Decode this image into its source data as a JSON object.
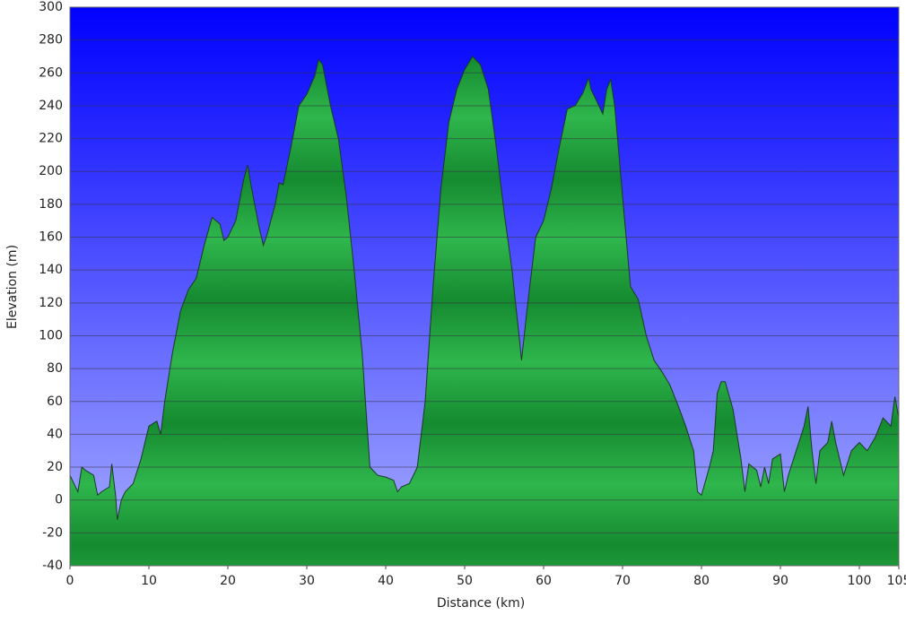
{
  "chart_data": {
    "type": "area",
    "xlabel": "Distance  (km)",
    "ylabel": "Elevation (m)",
    "x": [
      0,
      1,
      1.5,
      2,
      3,
      3.5,
      4,
      5,
      5.3,
      5.8,
      6,
      6.5,
      7,
      8,
      9,
      10,
      11,
      11.5,
      12,
      13,
      14,
      15,
      16,
      17,
      18,
      19,
      19.5,
      20,
      21,
      22,
      22.5,
      23,
      24,
      24.5,
      25,
      26,
      26.5,
      27,
      28,
      29,
      30,
      31,
      31.5,
      32,
      33,
      34,
      35,
      36,
      37,
      38,
      39,
      40,
      41,
      41.5,
      42,
      43,
      44,
      45,
      46,
      47,
      48,
      49,
      50,
      51,
      52,
      53,
      54,
      55,
      56,
      57,
      57.2,
      58,
      59,
      60,
      61,
      62,
      63,
      64,
      65,
      65.7,
      66,
      67,
      67.5,
      68,
      68.5,
      69,
      70,
      71,
      72,
      73,
      74,
      75,
      76,
      77,
      78,
      79,
      79.5,
      80,
      81,
      81.5,
      82,
      82.5,
      83,
      84,
      85,
      85.5,
      86,
      87,
      87.5,
      88,
      88.5,
      89,
      90,
      90.5,
      91,
      92,
      93,
      93.5,
      94,
      94.5,
      95,
      96,
      96.5,
      97,
      98,
      99,
      100,
      101,
      102,
      103,
      104,
      104.5,
      105
    ],
    "values": [
      15,
      5,
      20,
      18,
      15,
      3,
      5,
      8,
      22,
      2,
      -12,
      0,
      5,
      10,
      25,
      45,
      48,
      40,
      60,
      90,
      115,
      128,
      135,
      155,
      172,
      168,
      158,
      160,
      170,
      195,
      204,
      190,
      165,
      155,
      162,
      180,
      193,
      192,
      215,
      240,
      247,
      258,
      268,
      265,
      240,
      220,
      185,
      140,
      90,
      20,
      15,
      14,
      12,
      5,
      8,
      10,
      20,
      60,
      130,
      190,
      230,
      250,
      262,
      270,
      265,
      250,
      215,
      175,
      140,
      95,
      85,
      120,
      160,
      170,
      190,
      215,
      238,
      240,
      248,
      257,
      250,
      240,
      235,
      250,
      256,
      240,
      185,
      130,
      122,
      100,
      85,
      78,
      70,
      58,
      45,
      30,
      5,
      3,
      20,
      30,
      65,
      72,
      72,
      55,
      25,
      5,
      22,
      18,
      8,
      20,
      10,
      25,
      28,
      5,
      15,
      30,
      45,
      57,
      30,
      10,
      30,
      35,
      48,
      35,
      15,
      30,
      35,
      30,
      38,
      50,
      45,
      63,
      50
    ],
    "color": "#22a040",
    "xlim": [
      0,
      105
    ],
    "ylim": [
      -40,
      300
    ],
    "xticks": [
      0,
      10,
      20,
      30,
      40,
      50,
      60,
      70,
      80,
      90,
      100,
      105
    ],
    "yticks": [
      -40,
      -20,
      0,
      20,
      40,
      60,
      80,
      100,
      120,
      140,
      160,
      180,
      200,
      220,
      240,
      260,
      280,
      300
    ],
    "grid": true
  }
}
